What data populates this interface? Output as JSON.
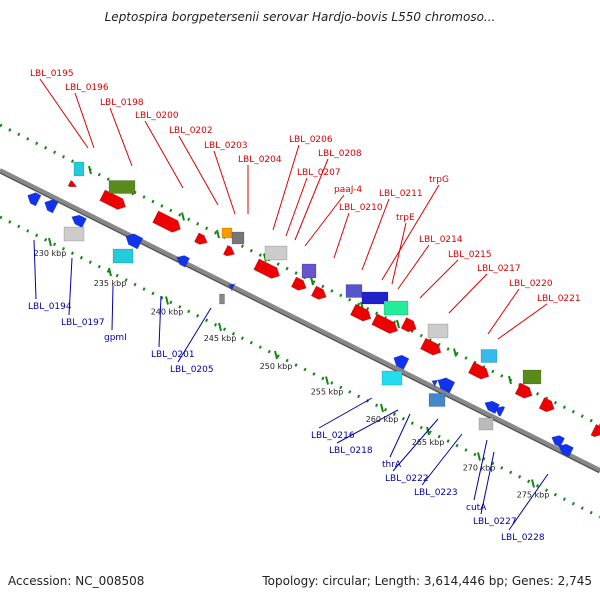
{
  "title": "Leptospira borgpetersenii serovar Hardjo-bovis L550 chromoso...",
  "footer": {
    "accession": "Accession: NC_008508",
    "topology": "Topology: circular; Length: 3,614,446 bp; Genes: 2,745"
  },
  "colors": {
    "forward_label": "#dd0000",
    "reverse_label": "#0000aa",
    "backbone": "#888888",
    "tick": "#118811"
  },
  "scale_ticks": [
    "230 kbp",
    "235 kbp",
    "240 kbp",
    "245 kbp",
    "250 kbp",
    "255 kbp",
    "260 kbp",
    "265 kbp",
    "270 kbp",
    "275 kbp"
  ],
  "forward_genes": [
    "LBL_0195",
    "LBL_0196",
    "LBL_0198",
    "LBL_0200",
    "LBL_0202",
    "LBL_0203",
    "LBL_0204",
    "LBL_0206",
    "LBL_0207",
    "LBL_0208",
    "paaJ-4",
    "LBL_0210",
    "LBL_0211",
    "trpG",
    "trpE",
    "LBL_0214",
    "LBL_0215",
    "LBL_0217",
    "LBL_0220",
    "LBL_0221"
  ],
  "reverse_genes": [
    "LBL_0194",
    "LBL_0197",
    "gpmI",
    "LBL_0201",
    "LBL_0205",
    "LBL_0216",
    "LBL_0218",
    "thrA",
    "LBL_0222",
    "LBL_0223",
    "cutA",
    "LBL_0227",
    "LBL_0228"
  ]
}
